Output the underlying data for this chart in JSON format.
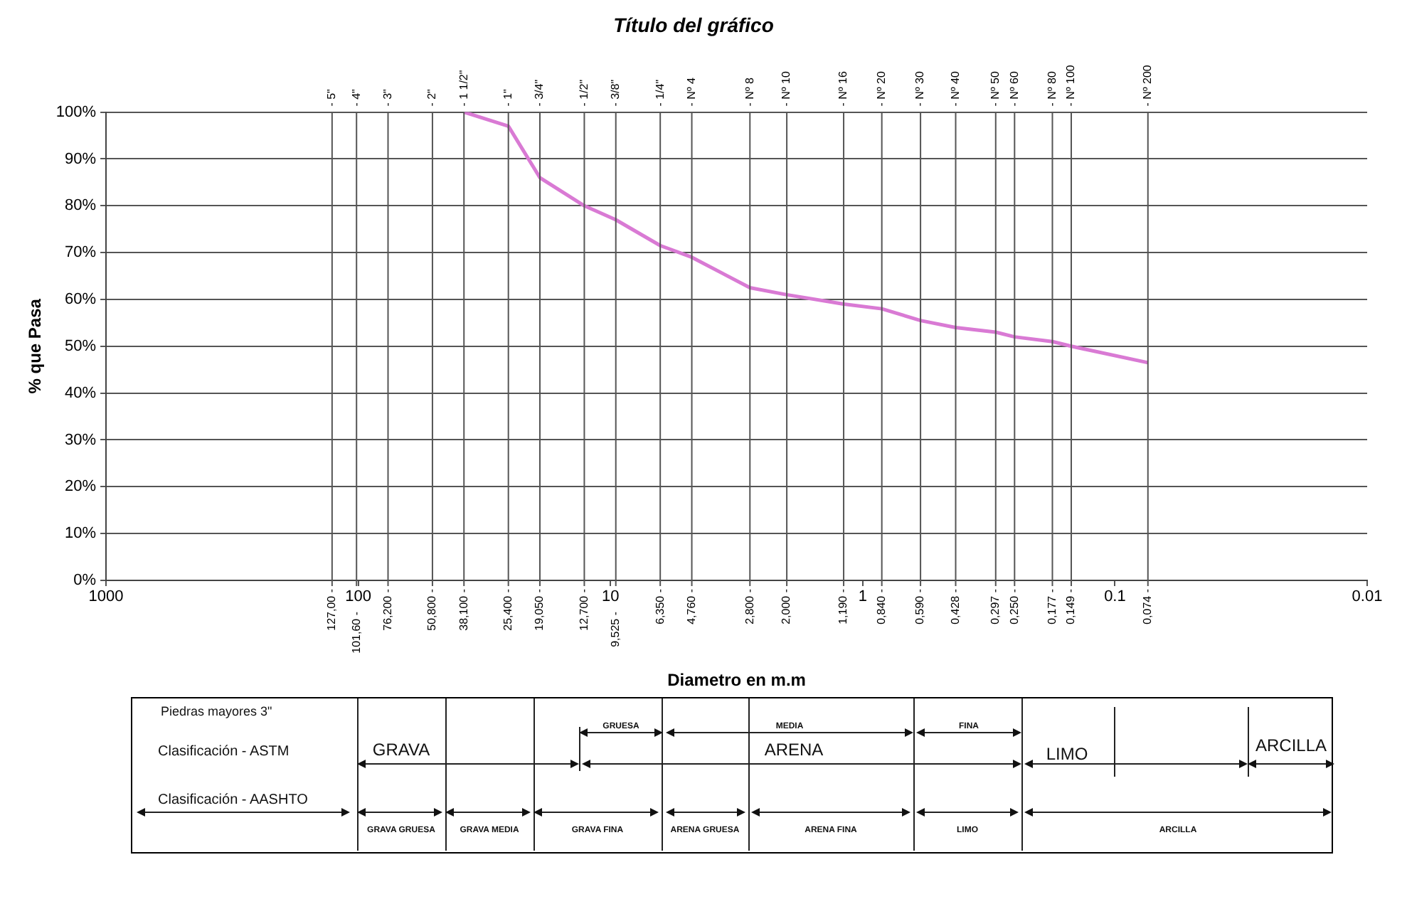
{
  "chart_data": {
    "type": "line",
    "title": "Título del gráfico",
    "xlabel": "Diametro en m.m",
    "ylabel": "% que Pasa",
    "log": "x",
    "grid": "y",
    "marker": "none",
    "line_style": "solid",
    "x": [
      38.1,
      25.4,
      19.05,
      12.7,
      9.525,
      6.35,
      4.76,
      2.8,
      2.0,
      1.19,
      0.84,
      0.59,
      0.428,
      0.297,
      0.25,
      0.177,
      0.149,
      0.074
    ],
    "series": [
      {
        "color": "#d97ad4",
        "values": [
          100,
          97,
          86,
          80,
          77,
          71.5,
          69,
          62.5,
          61,
          59,
          58,
          55.5,
          54,
          53,
          52,
          51,
          50,
          46.5
        ]
      }
    ],
    "xlim": [
      1000,
      0.01
    ],
    "xticks": [
      1000,
      100,
      10,
      1,
      0.1,
      0.01
    ],
    "ylim": [
      0,
      100
    ],
    "yticks": [
      {
        "value": 0,
        "label": "0%"
      },
      {
        "value": 10,
        "label": "10%"
      },
      {
        "value": 20,
        "label": "20%"
      },
      {
        "value": 30,
        "label": "30%"
      },
      {
        "value": 40,
        "label": "40%"
      },
      {
        "value": 50,
        "label": "50%"
      },
      {
        "value": 60,
        "label": "60%"
      },
      {
        "value": 70,
        "label": "70%"
      },
      {
        "value": 80,
        "label": "80%"
      },
      {
        "value": 90,
        "label": "90%"
      },
      {
        "value": 100,
        "label": "100%"
      }
    ],
    "ref_lines": [
      {
        "axis": "x",
        "value": 127,
        "label": "127,00 -"
      },
      {
        "axis": "x",
        "value": 101.6,
        "label": "101,60 -"
      },
      {
        "axis": "x",
        "value": 76.2,
        "label": "76,200 -"
      },
      {
        "axis": "x",
        "value": 50.8,
        "label": "50,800 -"
      },
      {
        "axis": "x",
        "value": 38.1,
        "label": "38,100 -"
      },
      {
        "axis": "x",
        "value": 25.4,
        "label": "25,400 -"
      },
      {
        "axis": "x",
        "value": 19.05,
        "label": "19,050 -"
      },
      {
        "axis": "x",
        "value": 12.7,
        "label": "12,700 -"
      },
      {
        "axis": "x",
        "value": 9.525,
        "label": "9,525 -"
      },
      {
        "axis": "x",
        "value": 6.35,
        "label": "6,350 -"
      },
      {
        "axis": "x",
        "value": 4.76,
        "label": "4,760 -"
      },
      {
        "axis": "x",
        "value": 2.8,
        "label": "2,800 -"
      },
      {
        "axis": "x",
        "value": 2.0,
        "label": "2,000 -"
      },
      {
        "axis": "x",
        "value": 1.19,
        "label": "1,190 -"
      },
      {
        "axis": "x",
        "value": 0.84,
        "label": "0,840 -"
      },
      {
        "axis": "x",
        "value": 0.59,
        "label": "0,590 -"
      },
      {
        "axis": "x",
        "value": 0.428,
        "label": "0,428 -"
      },
      {
        "axis": "x",
        "value": 0.297,
        "label": "0,297 -"
      },
      {
        "axis": "x",
        "value": 0.25,
        "label": "0,250 -"
      },
      {
        "axis": "x",
        "value": 0.177,
        "label": "0,177 -"
      },
      {
        "axis": "x",
        "value": 0.149,
        "label": "0,149 -"
      },
      {
        "axis": "x",
        "value": 0.074,
        "label": "0,074 -"
      }
    ],
    "annotations": [
      "Piedras mayores 3\"",
      "Clasificación - ASTM",
      "Clasificación - AASHTO",
      "GRAVA",
      "GRUESA",
      "MEDIA",
      "FINA",
      "ARENA",
      "LIMO",
      "ARCILLA",
      "GRAVA GRUESA",
      "GRAVA MEDIA",
      "GRAVA FINA",
      "ARENA GRUESA",
      "ARENA FINA",
      "LIMO",
      "ARCILLA",
      "- 5\"",
      "- 4\"",
      "- 3\"",
      "- 2\"",
      "- 1 1/2\"",
      "- 1\"",
      "- 3/4\"",
      "- 1/2\"",
      "- 3/8\"",
      "- 1/4\"",
      "- Nº 4",
      "- Nº 8",
      "- Nº 10",
      "- Nº 16",
      "- Nº 20",
      "- Nº 30",
      "- Nº 40",
      "- Nº 50",
      "- Nº 60",
      "- Nº 80",
      "- Nº 100",
      "- Nº 200"
    ]
  }
}
